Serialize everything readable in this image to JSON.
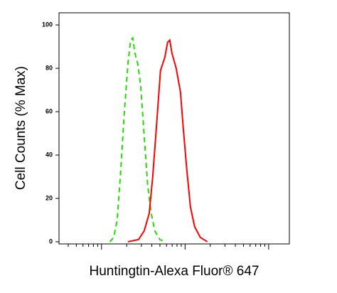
{
  "chart_data": {
    "type": "line",
    "x_label": "Huntingtin-Alexa Fluor® 647",
    "y_label": "Cell Counts (% Max)",
    "xscale": "log",
    "xlim": [
      3.1,
      1770
    ],
    "xticks": [
      10,
      100,
      1000
    ],
    "xminorticks": [
      4,
      5,
      6,
      7,
      8,
      9,
      20,
      30,
      40,
      50,
      60,
      70,
      80,
      90,
      200,
      300,
      400,
      500,
      600,
      700,
      800,
      900
    ],
    "ylim": [
      -1,
      105.6
    ],
    "yticks": [
      0,
      20,
      40,
      60,
      80,
      100
    ],
    "series": [
      {
        "color": "#22dd00",
        "dashed": true,
        "x": [
          12.6,
          14.0,
          15.4,
          17.0,
          18.7,
          20.7,
          22.3,
          23.7,
          25.1,
          27.2,
          29.4,
          32.4,
          35.7,
          39.4,
          43.5,
          49.9,
          57.2
        ],
        "values": [
          0,
          2,
          10,
          33,
          59,
          82,
          93,
          94,
          87,
          82,
          72,
          49,
          26,
          13,
          5,
          1,
          0
        ]
      },
      {
        "color": "#ff0000",
        "dashed": false,
        "x": [
          20.7,
          27.7,
          32.4,
          37.2,
          41.0,
          45.2,
          50.8,
          57.2,
          61.8,
          65.6,
          69.6,
          78.3,
          88.1,
          95.3,
          105,
          116,
          130,
          152,
          185
        ],
        "values": [
          0,
          1,
          5,
          13,
          30,
          52,
          79,
          85,
          92,
          93,
          87,
          80,
          69,
          52,
          33,
          16,
          7,
          2,
          0
        ]
      }
    ]
  }
}
